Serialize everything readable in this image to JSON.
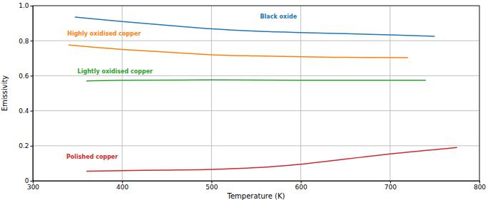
{
  "chart_data": {
    "type": "line",
    "x_label": "Temperature (K)",
    "y_label": "Emissivity",
    "xlim": [
      300,
      800
    ],
    "xticks": [
      300,
      400,
      500,
      600,
      700,
      800
    ],
    "ylim": [
      0,
      1
    ],
    "yticks": [
      0,
      0.2,
      0.4,
      0.6,
      0.8,
      {
        "value": 1,
        "label": "1.0"
      }
    ],
    "grid": true,
    "series": [
      {
        "name": "Black oxide",
        "color": "#1f77b4",
        "x": [
          347,
          400,
          450,
          500,
          550,
          600,
          650,
          700,
          750
        ],
        "values": [
          0.935,
          0.91,
          0.888,
          0.868,
          0.855,
          0.847,
          0.84,
          0.833,
          0.825
        ]
      },
      {
        "name": "Highly oxidised copper",
        "color": "#ff7f0e",
        "x": [
          340,
          400,
          450,
          500,
          550,
          600,
          650,
          720
        ],
        "values": [
          0.775,
          0.75,
          0.735,
          0.72,
          0.713,
          0.708,
          0.705,
          0.703
        ]
      },
      {
        "name": "Lightly oxidised copper",
        "color": "#2ca02c",
        "x": [
          360,
          400,
          500,
          600,
          700,
          740
        ],
        "values": [
          0.57,
          0.574,
          0.576,
          0.574,
          0.574,
          0.574
        ]
      },
      {
        "name": "Polished copper",
        "color": "#d62728",
        "x": [
          360,
          400,
          450,
          500,
          550,
          600,
          650,
          700,
          750,
          775
        ],
        "values": [
          0.055,
          0.058,
          0.061,
          0.065,
          0.075,
          0.095,
          0.124,
          0.153,
          0.178,
          0.19
        ]
      }
    ]
  }
}
